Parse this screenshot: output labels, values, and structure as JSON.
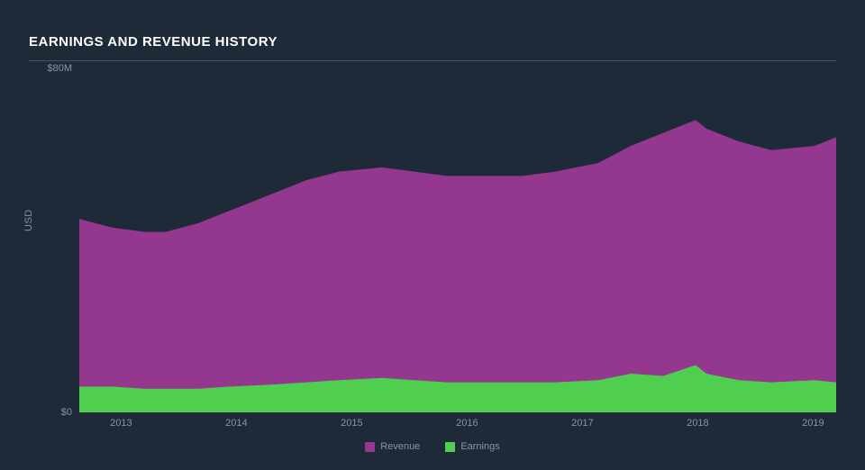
{
  "title": "EARNINGS AND REVENUE HISTORY",
  "chart": {
    "type": "area",
    "background_color": "#1e2a38",
    "grid_color": "#4a5562",
    "text_color": "#8a94a0",
    "title_color": "#ffffff",
    "title_fontsize": 15,
    "label_fontsize": 11,
    "y_axis": {
      "label": "USD",
      "min": 0,
      "max": 80,
      "ticks": [
        {
          "value": 0,
          "label": "$0"
        },
        {
          "value": 80,
          "label": "$80M"
        }
      ]
    },
    "x_axis": {
      "min": 2012.2,
      "max": 2019.2,
      "ticks": [
        2013,
        2014,
        2015,
        2016,
        2017,
        2018,
        2019
      ]
    },
    "series": [
      {
        "name": "Revenue",
        "color": "#93388e",
        "data": [
          {
            "x": 2012.2,
            "y": 45
          },
          {
            "x": 2012.5,
            "y": 43
          },
          {
            "x": 2012.8,
            "y": 42
          },
          {
            "x": 2013.0,
            "y": 42
          },
          {
            "x": 2013.3,
            "y": 44
          },
          {
            "x": 2013.6,
            "y": 47
          },
          {
            "x": 2014.0,
            "y": 51
          },
          {
            "x": 2014.3,
            "y": 54
          },
          {
            "x": 2014.6,
            "y": 56
          },
          {
            "x": 2015.0,
            "y": 57
          },
          {
            "x": 2015.3,
            "y": 56
          },
          {
            "x": 2015.6,
            "y": 55
          },
          {
            "x": 2016.0,
            "y": 55
          },
          {
            "x": 2016.3,
            "y": 55
          },
          {
            "x": 2016.6,
            "y": 56
          },
          {
            "x": 2017.0,
            "y": 58
          },
          {
            "x": 2017.3,
            "y": 62
          },
          {
            "x": 2017.6,
            "y": 65
          },
          {
            "x": 2017.9,
            "y": 68
          },
          {
            "x": 2018.0,
            "y": 66
          },
          {
            "x": 2018.3,
            "y": 63
          },
          {
            "x": 2018.6,
            "y": 61
          },
          {
            "x": 2019.0,
            "y": 62
          },
          {
            "x": 2019.2,
            "y": 64
          }
        ]
      },
      {
        "name": "Earnings",
        "color": "#4fce4f",
        "data": [
          {
            "x": 2012.2,
            "y": 6
          },
          {
            "x": 2012.5,
            "y": 6
          },
          {
            "x": 2012.8,
            "y": 5.5
          },
          {
            "x": 2013.0,
            "y": 5.5
          },
          {
            "x": 2013.3,
            "y": 5.5
          },
          {
            "x": 2013.6,
            "y": 6
          },
          {
            "x": 2014.0,
            "y": 6.5
          },
          {
            "x": 2014.3,
            "y": 7
          },
          {
            "x": 2014.6,
            "y": 7.5
          },
          {
            "x": 2015.0,
            "y": 8
          },
          {
            "x": 2015.3,
            "y": 7.5
          },
          {
            "x": 2015.6,
            "y": 7
          },
          {
            "x": 2016.0,
            "y": 7
          },
          {
            "x": 2016.3,
            "y": 7
          },
          {
            "x": 2016.6,
            "y": 7
          },
          {
            "x": 2017.0,
            "y": 7.5
          },
          {
            "x": 2017.3,
            "y": 9
          },
          {
            "x": 2017.6,
            "y": 8.5
          },
          {
            "x": 2017.9,
            "y": 11
          },
          {
            "x": 2018.0,
            "y": 9
          },
          {
            "x": 2018.3,
            "y": 7.5
          },
          {
            "x": 2018.6,
            "y": 7
          },
          {
            "x": 2019.0,
            "y": 7.5
          },
          {
            "x": 2019.2,
            "y": 7
          }
        ]
      }
    ],
    "legend": {
      "position": "bottom-center",
      "items": [
        {
          "label": "Revenue",
          "color": "#93388e"
        },
        {
          "label": "Earnings",
          "color": "#4fce4f"
        }
      ]
    }
  }
}
